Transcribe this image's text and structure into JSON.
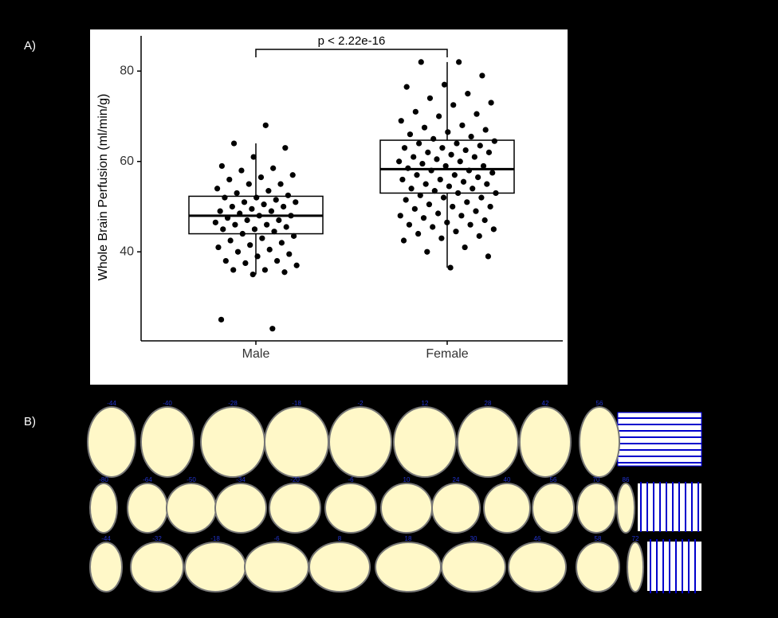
{
  "chart_data": {
    "type": "box",
    "panel_label": "A)",
    "y_label": "Whole Brain Perfusion (ml/min/g)",
    "annotation": "p < 2.22e-16",
    "categories": [
      "Male",
      "Female"
    ],
    "ylim": [
      20.3,
      87.8
    ],
    "yticks": [
      40,
      60,
      80
    ],
    "boxes": [
      {
        "whisker_low": 35,
        "q1": 44,
        "median": 48,
        "q3": 52.3,
        "whisker_high": 64
      },
      {
        "whisker_low": 36.5,
        "q1": 53,
        "median": 58.3,
        "q3": 64.7,
        "whisker_high": 82
      }
    ],
    "points": [
      [
        68,
        64,
        63,
        61,
        59,
        58.5,
        58,
        57,
        56.5,
        56,
        55,
        55,
        54,
        53.5,
        53,
        52.5,
        52,
        52,
        51.5,
        51,
        51,
        50.5,
        50,
        50,
        49.5,
        49,
        49,
        48.5,
        48,
        48,
        47.5,
        47,
        47,
        46.5,
        46,
        46,
        45.5,
        45,
        45,
        44.5,
        44,
        43.5,
        43,
        42.5,
        42,
        41.5,
        41,
        40.5,
        40,
        39.5,
        39,
        38,
        38,
        37.5,
        37,
        36,
        36,
        35.5,
        35,
        25,
        23
      ],
      [
        82,
        82,
        79,
        77,
        76.5,
        75,
        74,
        73,
        72.5,
        71,
        70.5,
        70,
        69,
        68,
        67.5,
        67,
        66.5,
        66,
        65.5,
        65,
        64.5,
        64,
        64,
        63.5,
        63,
        63,
        62.5,
        62,
        62,
        61.5,
        61,
        61,
        60.5,
        60,
        60,
        59.5,
        59,
        59,
        58.5,
        58,
        58,
        57.5,
        57,
        57,
        56.5,
        56,
        56,
        55.5,
        55,
        55,
        54.5,
        54,
        54,
        53.5,
        53,
        53,
        52.5,
        52,
        52,
        51.5,
        51,
        50.5,
        50,
        50,
        49.5,
        49,
        48.5,
        48,
        48,
        47.5,
        47,
        46.5,
        46,
        46,
        45.5,
        45,
        44.5,
        44,
        43.5,
        43,
        42.5,
        41,
        40,
        39,
        36.5
      ]
    ]
  },
  "slices": {
    "panel_label": "B)",
    "rows": [
      [
        "-44",
        "-40",
        "-28",
        "-18",
        "-2",
        "12",
        "28",
        "42",
        "56"
      ],
      [
        "-80",
        "-64",
        "-50",
        "-34",
        "-20",
        "-6",
        "10",
        "24",
        "40",
        "56",
        "70",
        "86"
      ],
      [
        "-44",
        "-32",
        "-18",
        "-6",
        "8",
        "18",
        "30",
        "46",
        "58",
        "72"
      ]
    ]
  }
}
